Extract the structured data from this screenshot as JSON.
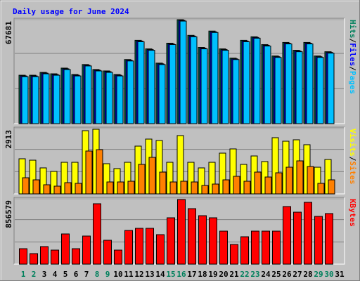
{
  "title": "Daily usage for June 2024",
  "separator": "/",
  "chart_data": [
    {
      "type": "bar",
      "ylim": [
        0,
        67681
      ],
      "yticks": [
        67681
      ],
      "grid": true,
      "series": [
        {
          "name": "Hits",
          "color": "#00805c",
          "values": [
            31523,
            31523,
            33379,
            32452,
            36160,
            31988,
            38478,
            35233,
            34306,
            31988,
            41723,
            54240,
            48677,
            39405,
            52386,
            67681,
            57485,
            49604,
            60267,
            48677,
            42650,
            54240,
            56558,
            51458,
            44041,
            52850,
            47750,
            52850,
            44041,
            46822,
            null
          ]
        },
        {
          "name": "Files",
          "color": "#0000ff",
          "values": [
            31060,
            31060,
            32915,
            31988,
            35696,
            31524,
            38014,
            34769,
            33842,
            31524,
            41259,
            53776,
            48213,
            38941,
            51922,
            67217,
            57021,
            49140,
            59803,
            48213,
            42186,
            53776,
            56094,
            50994,
            43577,
            52386,
            47286,
            52386,
            43577,
            46358,
            null
          ]
        },
        {
          "name": "Pages",
          "color": "#00c0ff",
          "values": [
            30596,
            30596,
            32452,
            31524,
            35233,
            31060,
            37551,
            34306,
            33379,
            31060,
            40796,
            53313,
            47750,
            38478,
            51458,
            66754,
            56558,
            48677,
            59340,
            47750,
            41723,
            53313,
            55631,
            50531,
            43114,
            51922,
            46822,
            51922,
            43114,
            45895,
            null
          ]
        }
      ]
    },
    {
      "type": "bar",
      "ylim": [
        0,
        2913
      ],
      "yticks": [
        2913
      ],
      "grid": true,
      "series": [
        {
          "name": "Visits",
          "color": "#ffff00",
          "values": [
            1566,
            1503,
            1159,
            1002,
            1409,
            1409,
            2819,
            2882,
            1347,
            1128,
            1409,
            2130,
            2443,
            2380,
            1409,
            2600,
            1409,
            1159,
            1409,
            1817,
            2005,
            1315,
            1691,
            1441,
            2506,
            2349,
            2412,
            2193,
            1190,
            1535,
            null
          ]
        },
        {
          "name": "Sites",
          "color": "#ff8000",
          "values": [
            720,
            626,
            407,
            345,
            501,
            470,
            1911,
            1973,
            532,
            532,
            564,
            1315,
            1629,
            971,
            532,
            564,
            532,
            376,
            438,
            626,
            783,
            564,
            971,
            752,
            940,
            1190,
            1472,
            1221,
            470,
            626,
            null
          ]
        }
      ]
    },
    {
      "type": "bar",
      "ylim": [
        0,
        856579
      ],
      "yticks": [
        856579
      ],
      "grid": true,
      "categories": [
        "1",
        "2",
        "3",
        "4",
        "5",
        "6",
        "7",
        "8",
        "9",
        "10",
        "11",
        "12",
        "13",
        "14",
        "15",
        "16",
        "17",
        "18",
        "19",
        "20",
        "21",
        "22",
        "23",
        "24",
        "25",
        "26",
        "27",
        "28",
        "29",
        "30",
        "31"
      ],
      "category_colors": [
        "#00805c",
        "#00805c",
        "#000000",
        "#000000",
        "#000000",
        "#000000",
        "#000000",
        "#00805c",
        "#00805c",
        "#000000",
        "#000000",
        "#000000",
        "#000000",
        "#000000",
        "#00805c",
        "#00805c",
        "#000000",
        "#000000",
        "#000000",
        "#000000",
        "#000000",
        "#00805c",
        "#00805c",
        "#000000",
        "#000000",
        "#000000",
        "#000000",
        "#000000",
        "#00805c",
        "#00805c",
        "#000000"
      ],
      "series": [
        {
          "name": "KBytes",
          "color": "#ff0000",
          "values": [
            202631,
            138158,
            230263,
            184210,
            396052,
            202631,
            368420,
            792103,
            313157,
            184210,
            442104,
            469736,
            469736,
            386841,
            607893,
            847366,
            727630,
            635525,
            607893,
            432894,
            257894,
            359210,
            432894,
            432894,
            432894,
            755261,
            681577,
            810524,
            626314,
            663156,
            null
          ]
        }
      ]
    }
  ]
}
